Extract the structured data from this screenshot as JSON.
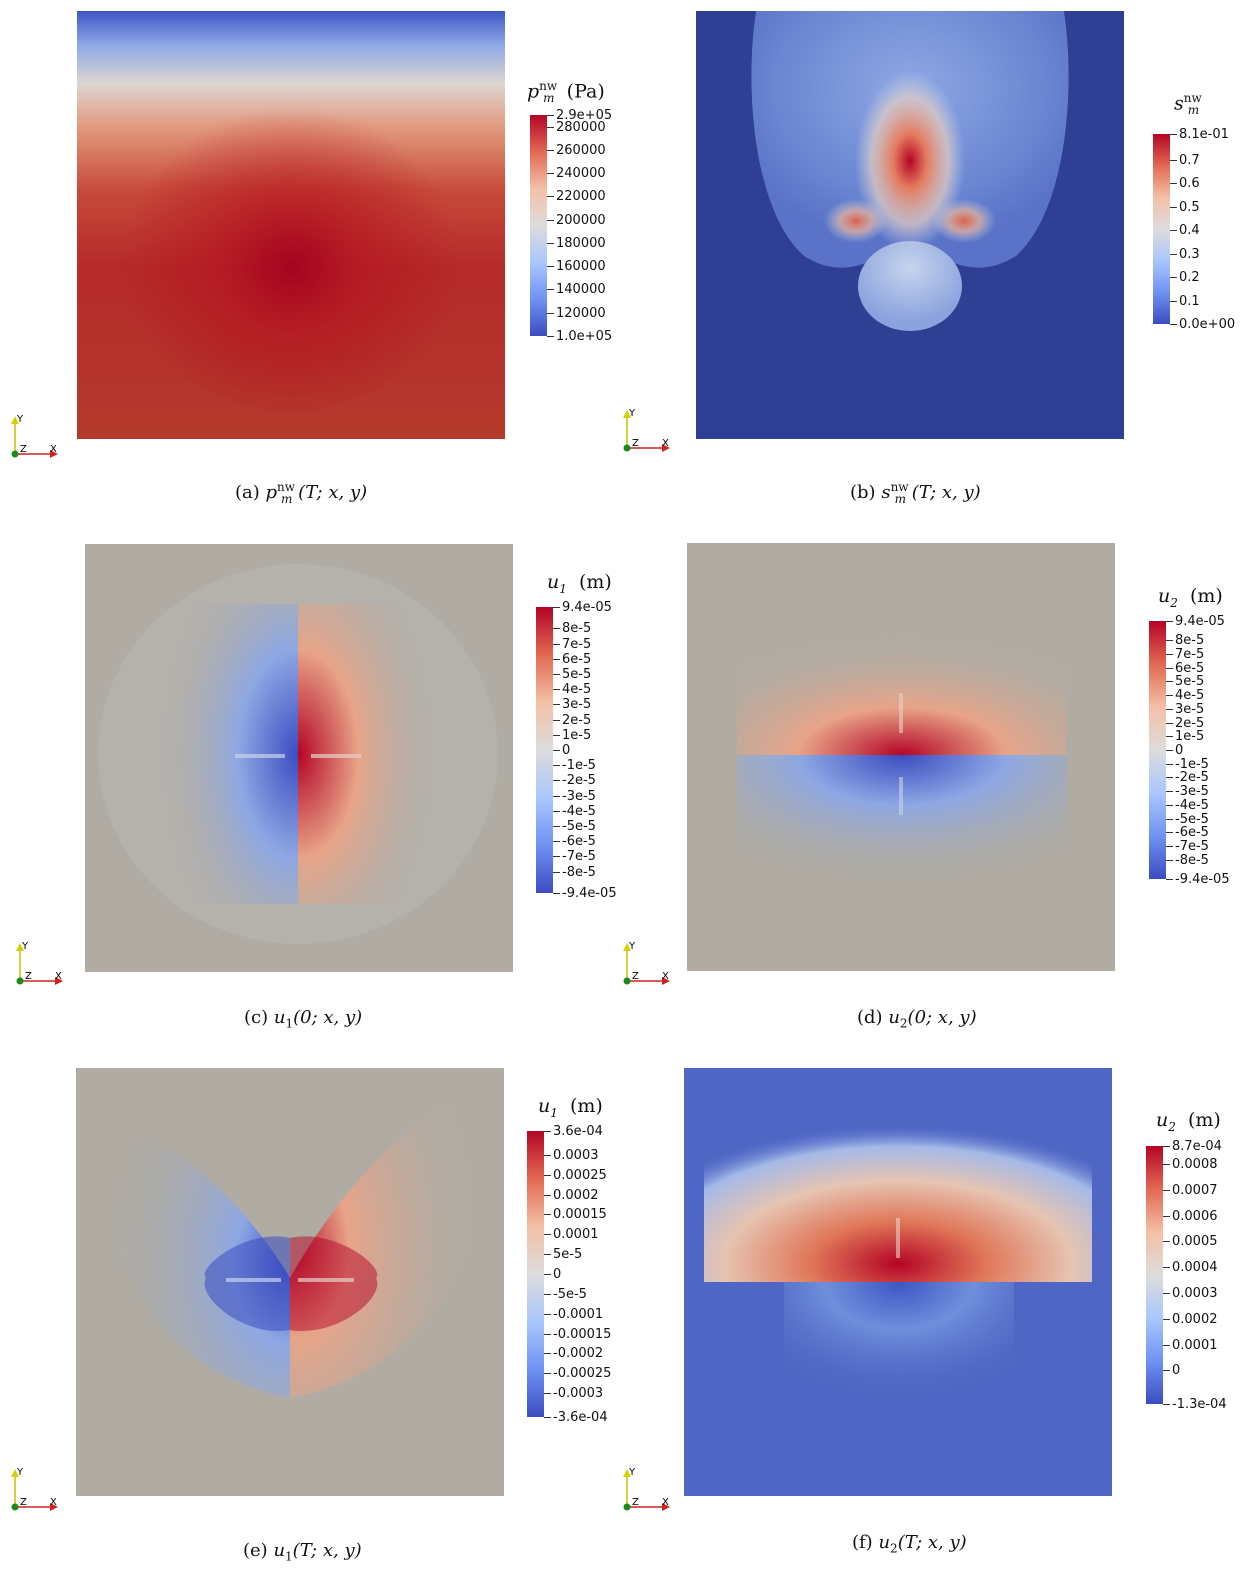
{
  "panels": [
    {
      "id": "a",
      "caption": "(a) pₘⁿʷ(T; x, y)",
      "caption_parts": {
        "label": "(a)",
        "sym": "p",
        "sup": "nw",
        "sub": "m",
        "args": "(T; x, y)"
      },
      "colorbar": {
        "title_sym": "p",
        "title_sup": "nw",
        "title_sub": "m",
        "title_unit": "(Pa)",
        "min_label": "1.0e+05",
        "max_label": "2.9e+05",
        "min": 100000,
        "max": 290000,
        "ticks": [
          {
            "value": 280000,
            "label": "280000"
          },
          {
            "value": 260000,
            "label": "260000"
          },
          {
            "value": 240000,
            "label": "240000"
          },
          {
            "value": 220000,
            "label": "220000"
          },
          {
            "value": 200000,
            "label": "200000"
          },
          {
            "value": 180000,
            "label": "180000"
          },
          {
            "value": 160000,
            "label": "160000"
          },
          {
            "value": 140000,
            "label": "140000"
          },
          {
            "value": 120000,
            "label": "120000"
          }
        ]
      }
    },
    {
      "id": "b",
      "caption_parts": {
        "label": "(b)",
        "sym": "s",
        "sup": "nw",
        "sub": "m",
        "args": "(T; x, y)"
      },
      "colorbar": {
        "title_sym": "s",
        "title_sup": "nw",
        "title_sub": "m",
        "title_unit": "",
        "min_label": "0.0e+00",
        "max_label": "8.1e-01",
        "min": 0,
        "max": 0.81,
        "ticks": [
          {
            "value": 0.7,
            "label": "0.7"
          },
          {
            "value": 0.6,
            "label": "0.6"
          },
          {
            "value": 0.5,
            "label": "0.5"
          },
          {
            "value": 0.4,
            "label": "0.4"
          },
          {
            "value": 0.3,
            "label": "0.3"
          },
          {
            "value": 0.2,
            "label": "0.2"
          },
          {
            "value": 0.1,
            "label": "0.1"
          }
        ]
      }
    },
    {
      "id": "c",
      "caption_parts": {
        "label": "(c)",
        "sym": "u",
        "sup": "",
        "sub": "1",
        "args": "(0; x, y)"
      },
      "colorbar": {
        "title_sym": "u",
        "title_sup": "",
        "title_sub": "1",
        "title_unit": "(m)",
        "min_label": "-9.4e-05",
        "max_label": "9.4e-05",
        "min": -9.4e-05,
        "max": 9.4e-05,
        "ticks": [
          {
            "value": 8e-05,
            "label": "8e-5"
          },
          {
            "value": 7e-05,
            "label": "7e-5"
          },
          {
            "value": 6e-05,
            "label": "6e-5"
          },
          {
            "value": 5e-05,
            "label": "5e-5"
          },
          {
            "value": 4e-05,
            "label": "4e-5"
          },
          {
            "value": 3e-05,
            "label": "3e-5"
          },
          {
            "value": 2e-05,
            "label": "2e-5"
          },
          {
            "value": 1e-05,
            "label": "1e-5"
          },
          {
            "value": 0,
            "label": "0"
          },
          {
            "value": -1e-05,
            "label": "-1e-5"
          },
          {
            "value": -2e-05,
            "label": "-2e-5"
          },
          {
            "value": -3e-05,
            "label": "-3e-5"
          },
          {
            "value": -4e-05,
            "label": "-4e-5"
          },
          {
            "value": -5e-05,
            "label": "-5e-5"
          },
          {
            "value": -6e-05,
            "label": "-6e-5"
          },
          {
            "value": -7e-05,
            "label": "-7e-5"
          },
          {
            "value": -8e-05,
            "label": "-8e-5"
          }
        ]
      }
    },
    {
      "id": "d",
      "caption_parts": {
        "label": "(d)",
        "sym": "u",
        "sup": "",
        "sub": "2",
        "args": "(0; x, y)"
      },
      "colorbar": {
        "title_sym": "u",
        "title_sup": "",
        "title_sub": "2",
        "title_unit": "(m)",
        "min_label": "-9.4e-05",
        "max_label": "9.4e-05",
        "min": -9.4e-05,
        "max": 9.4e-05,
        "ticks": [
          {
            "value": 8e-05,
            "label": "8e-5"
          },
          {
            "value": 7e-05,
            "label": "7e-5"
          },
          {
            "value": 6e-05,
            "label": "6e-5"
          },
          {
            "value": 5e-05,
            "label": "5e-5"
          },
          {
            "value": 4e-05,
            "label": "4e-5"
          },
          {
            "value": 3e-05,
            "label": "3e-5"
          },
          {
            "value": 2e-05,
            "label": "2e-5"
          },
          {
            "value": 1e-05,
            "label": "1e-5"
          },
          {
            "value": 0,
            "label": "0"
          },
          {
            "value": -1e-05,
            "label": "-1e-5"
          },
          {
            "value": -2e-05,
            "label": "-2e-5"
          },
          {
            "value": -3e-05,
            "label": "-3e-5"
          },
          {
            "value": -4e-05,
            "label": "-4e-5"
          },
          {
            "value": -5e-05,
            "label": "-5e-5"
          },
          {
            "value": -6e-05,
            "label": "-6e-5"
          },
          {
            "value": -7e-05,
            "label": "-7e-5"
          },
          {
            "value": -8e-05,
            "label": "-8e-5"
          }
        ]
      }
    },
    {
      "id": "e",
      "caption_parts": {
        "label": "(e)",
        "sym": "u",
        "sup": "",
        "sub": "1",
        "args": "(T; x, y)"
      },
      "colorbar": {
        "title_sym": "u",
        "title_sup": "",
        "title_sub": "1",
        "title_unit": "(m)",
        "min_label": "-3.6e-04",
        "max_label": "3.6e-04",
        "min": -0.00036,
        "max": 0.00036,
        "ticks": [
          {
            "value": 0.0003,
            "label": "0.0003"
          },
          {
            "value": 0.00025,
            "label": "0.00025"
          },
          {
            "value": 0.0002,
            "label": "0.0002"
          },
          {
            "value": 0.00015,
            "label": "0.00015"
          },
          {
            "value": 0.0001,
            "label": "0.0001"
          },
          {
            "value": 5e-05,
            "label": "5e-5"
          },
          {
            "value": 0,
            "label": "0"
          },
          {
            "value": -5e-05,
            "label": "-5e-5"
          },
          {
            "value": -0.0001,
            "label": "-0.0001"
          },
          {
            "value": -0.00015,
            "label": "-0.00015"
          },
          {
            "value": -0.0002,
            "label": "-0.0002"
          },
          {
            "value": -0.00025,
            "label": "-0.00025"
          },
          {
            "value": -0.0003,
            "label": "-0.0003"
          }
        ]
      }
    },
    {
      "id": "f",
      "caption_parts": {
        "label": "(f)",
        "sym": "u",
        "sup": "",
        "sub": "2",
        "args": "(T; x, y)"
      },
      "colorbar": {
        "title_sym": "u",
        "title_sup": "",
        "title_sub": "2",
        "title_unit": "(m)",
        "min_label": "-1.3e-04",
        "max_label": "8.7e-04",
        "min": -0.00013,
        "max": 0.00087,
        "ticks": [
          {
            "value": 0.0008,
            "label": "0.0008"
          },
          {
            "value": 0.0007,
            "label": "0.0007"
          },
          {
            "value": 0.0006,
            "label": "0.0006"
          },
          {
            "value": 0.0005,
            "label": "0.0005"
          },
          {
            "value": 0.0004,
            "label": "0.0004"
          },
          {
            "value": 0.0003,
            "label": "0.0003"
          },
          {
            "value": 0.0002,
            "label": "0.0002"
          },
          {
            "value": 0.0001,
            "label": "0.0001"
          },
          {
            "value": 0,
            "label": "0"
          }
        ]
      }
    }
  ],
  "axes_triad": {
    "y": "Y",
    "z": "Z",
    "x": "X"
  },
  "colors": {
    "red": "#b40426",
    "blue": "#3b4cc0",
    "grey": "#b0aca4",
    "background": "#ffffff"
  }
}
